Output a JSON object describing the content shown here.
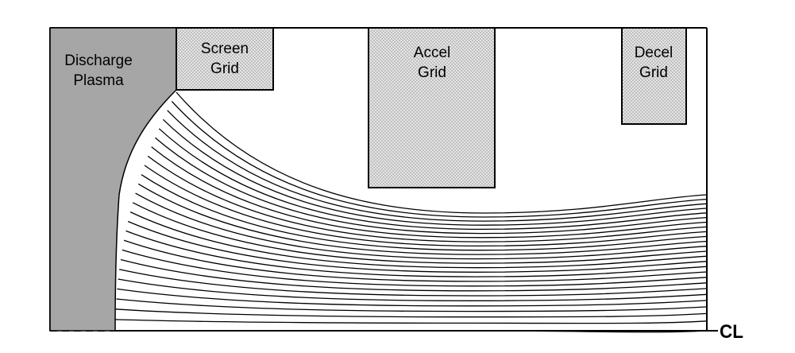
{
  "labels": {
    "discharge_plasma": [
      "Discharge",
      "Plasma"
    ],
    "screen_grid": [
      "Screen",
      "Grid"
    ],
    "accel_grid": [
      "Accel",
      "Grid"
    ],
    "decel_grid": [
      "Decel",
      "Grid"
    ],
    "centerline": "CL"
  },
  "colors": {
    "plasma_fill": "#a6a6a6",
    "grid_fill": "#e4e4e4",
    "line": "#000000",
    "background": "#ffffff"
  },
  "beamlet": {
    "trajectory_count": 26
  }
}
